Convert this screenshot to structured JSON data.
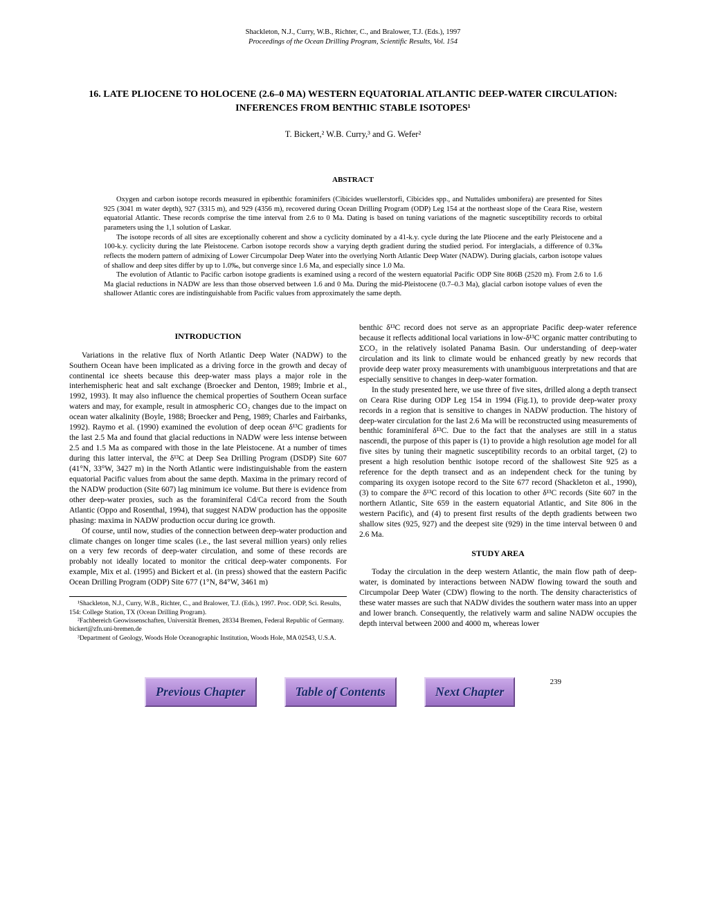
{
  "header": {
    "line1": "Shackleton, N.J., Curry, W.B., Richter, C., and Bralower, T.J. (Eds.), 1997",
    "line2": "Proceedings of the Ocean Drilling Program, Scientific Results, Vol. 154"
  },
  "title": "16. LATE PLIOCENE TO HOLOCENE (2.6–0 MA) WESTERN EQUATORIAL ATLANTIC DEEP-WATER CIRCULATION: INFERENCES FROM BENTHIC STABLE ISOTOPES¹",
  "authors": "T. Bickert,² W.B. Curry,³ and G. Wefer²",
  "abstract_heading": "ABSTRACT",
  "abstract": {
    "p1": "Oxygen and carbon isotope records measured in epibenthic foraminifers (Cibicides wuellerstorfi, Cibicides spp., and Nuttalides umbonifera) are presented for Sites 925 (3041 m water depth), 927 (3315 m), and 929 (4356 m), recovered during Ocean Drilling Program (ODP) Leg 154 at the northeast slope of the Ceara Rise, western equatorial Atlantic. These records comprise the time interval from 2.6 to 0 Ma. Dating is based on tuning variations of the magnetic susceptibility records to orbital parameters using the 1,1 solution of Laskar.",
    "p2": "The isotope records of all sites are exceptionally coherent and show a cyclicity dominated by a 41-k.y. cycle during the late Pliocene and the early Pleistocene and a 100-k.y. cyclicity during the late Pleistocene. Carbon isotope records show a varying depth gradient during the studied period. For interglacials, a difference of 0.3‰ reflects the modern pattern of admixing of Lower Circumpolar Deep Water into the overlying North Atlantic Deep Water (NADW). During glacials, carbon isotope values of shallow and deep sites differ by up to 1.0‰, but converge since 1.6 Ma, and especially since 1.0 Ma.",
    "p3": "The evolution of Atlantic to Pacific carbon isotope gradients is examined using a record of the western equatorial Pacific ODP Site 806B (2520 m). From 2.6 to 1.6 Ma glacial reductions in NADW are less than those observed between 1.6 and 0 Ma. During the mid-Pleistocene (0.7–0.3 Ma), glacial carbon isotope values of even the shallower Atlantic cores are indistinguishable from Pacific values from approximately the same depth."
  },
  "sections": {
    "introduction_heading": "INTRODUCTION",
    "intro_p1": "Variations in the relative flux of North Atlantic Deep Water (NADW) to the Southern Ocean have been implicated as a driving force in the growth and decay of continental ice sheets because this deep-water mass plays a major role in the interhemispheric heat and salt exchange (Broecker and Denton, 1989; Imbrie et al., 1992, 1993). It may also influence the chemical properties of Southern Ocean surface waters and may, for example, result in atmospheric CO₂ changes due to the impact on ocean water alkalinity (Boyle, 1988; Broecker and Peng, 1989; Charles and Fairbanks, 1992). Raymo et al. (1990) examined the evolution of deep ocean δ¹³C gradients for the last 2.5 Ma and found that glacial reductions in NADW were less intense between 2.5 and 1.5 Ma as compared with those in the late Pleistocene. At a number of times during this latter interval, the δ¹³C at Deep Sea Drilling Program (DSDP) Site 607 (41°N, 33°W, 3427 m) in the North Atlantic were indistinguishable from the eastern equatorial Pacific values from about the same depth. Maxima in the primary record of the NADW production (Site 607) lag minimum ice volume. But there is evidence from other deep-water proxies, such as the foraminiferal Cd/Ca record from the South Atlantic (Oppo and Rosenthal, 1994), that suggest NADW production has the opposite phasing: maxima in NADW production occur during ice growth.",
    "intro_p2": "Of course, until now, studies of the connection between deep-water production and climate changes on longer time scales (i.e., the last several million years) only relies on a very few records of deep-water circulation, and some of these records are probably not ideally located to monitor the critical deep-water components. For example, Mix et al. (1995) and Bickert et al. (in press) showed that the eastern Pacific Ocean Drilling Program (ODP) Site 677 (1°N, 84°W, 3461 m)",
    "intro_p3": "benthic δ¹³C record does not serve as an appropriate Pacific deep-water reference because it reflects additional local variations in low-δ¹³C organic matter contributing to ΣCO₂ in the relatively isolated Panama Basin. Our understanding of deep-water circulation and its link to climate would be enhanced greatly by new records that provide deep water proxy measurements with unambiguous interpretations and that are especially sensitive to changes in deep-water formation.",
    "intro_p4": "In the study presented here, we use three of five sites, drilled along a depth transect on Ceara Rise during ODP Leg 154 in 1994 (Fig.1), to provide deep-water proxy records in a region that is sensitive to changes in NADW production. The history of deep-water circulation for the last 2.6 Ma will be reconstructed using measurements of benthic foraminiferal δ¹³C. Due to the fact that the analyses are still in a status nascendi, the purpose of this paper is (1) to provide a high resolution age model for all five sites by tuning their magnetic susceptibility records to an orbital target, (2) to present a high resolution benthic isotope record of the shallowest Site 925 as a reference for the depth transect and as an independent check for the tuning by comparing its oxygen isotope record to the Site 677 record (Shackleton et al., 1990), (3) to compare the δ¹³C record of this location to other δ¹³C records (Site 607 in the northern Atlantic, Site 659 in the eastern equatorial Atlantic, and Site 806 in the western Pacific), and (4) to present first results of the depth gradients between two shallow sites (925, 927) and the deepest site (929) in the time interval between 0 and 2.6 Ma.",
    "study_area_heading": "STUDY AREA",
    "study_p1": "Today the circulation in the deep western Atlantic, the main flow path of deep-water, is dominated by interactions between NADW flowing toward the south and Circumpolar Deep Water (CDW) flowing to the north. The density characteristics of these water masses are such that NADW divides the southern water mass into an upper and lower branch. Consequently, the relatively warm and saline NADW occupies the depth interval between 2000 and 4000 m, whereas lower"
  },
  "footnotes": {
    "f1": "¹Shackleton, N.J., Curry, W.B., Richter, C., and Bralower, T.J. (Eds.), 1997. Proc. ODP, Sci. Results, 154: College Station, TX (Ocean Drilling Program).",
    "f2": "²Fachbereich Geowissenschaften, Universität Bremen, 28334 Bremen, Federal Republic of Germany. bickert@zfn.uni-bremen.de",
    "f3": "³Department of Geology, Woods Hole Oceanographic Institution, Woods Hole, MA 02543, U.S.A."
  },
  "nav": {
    "prev": "Previous Chapter",
    "toc": "Table of Contents",
    "next": "Next Chapter"
  },
  "page_number": "239"
}
